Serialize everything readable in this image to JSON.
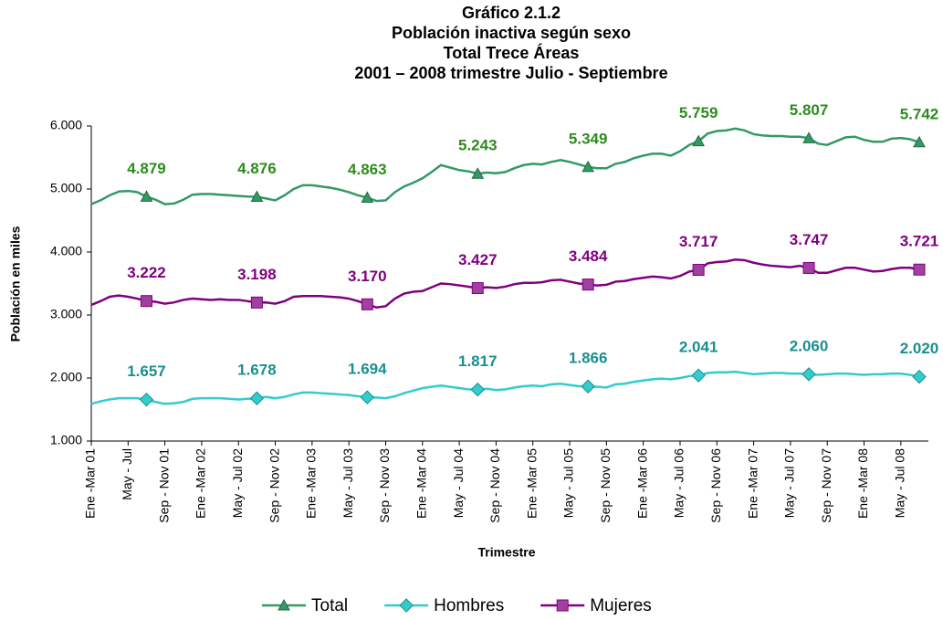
{
  "chart_data": {
    "type": "line",
    "title": [
      "Gráfico 2.1.2",
      "Población inactiva según sexo",
      "Total Trece Áreas",
      "2001 – 2008 trimestre Julio - Septiembre"
    ],
    "x_label": "Trimestre",
    "y_label": "Población en miles",
    "categories": [
      "Ene -Mar 01",
      null,
      null,
      null,
      "May - Jul",
      null,
      null,
      null,
      "Sep - Nov 01",
      null,
      null,
      null,
      "Ene -Mar 02",
      null,
      null,
      null,
      "May - Jul 02",
      null,
      null,
      null,
      "Sep - Nov 02",
      null,
      null,
      null,
      "Ene -Mar 03",
      null,
      null,
      null,
      "May - Jul 03",
      null,
      null,
      null,
      "Sep - Nov 03",
      null,
      null,
      null,
      "Ene -Mar 04",
      null,
      null,
      null,
      "May - Jul 04",
      null,
      null,
      null,
      "Sep - Nov 04",
      null,
      null,
      null,
      "Ene -Mar 05",
      null,
      null,
      null,
      "May - Jul 05",
      null,
      null,
      null,
      "Sep - Nov 05",
      null,
      null,
      null,
      "Ene -Mar 06",
      null,
      null,
      null,
      "May - Jul 06",
      null,
      null,
      null,
      "Sep - Nov 06",
      null,
      null,
      null,
      "Ene -Mar 07",
      null,
      null,
      null,
      "May - Jul 07",
      null,
      null,
      null,
      "Sep - Nov 07",
      null,
      null,
      null,
      "Ene -Mar 08",
      null,
      null,
      null,
      "May - Jul 08",
      null,
      null
    ],
    "ylim": [
      1000,
      6000
    ],
    "yticks": [
      {
        "value": 1000,
        "label": "1.000"
      },
      {
        "value": 2000,
        "label": "2.000"
      },
      {
        "value": 3000,
        "label": "3.000"
      },
      {
        "value": 4000,
        "label": "4.000"
      },
      {
        "value": 5000,
        "label": "5.000"
      },
      {
        "value": 6000,
        "label": "6.000"
      }
    ],
    "legend": "bottom",
    "series": [
      {
        "name": "Total",
        "color": "#339966",
        "label_color": "#2e8b1e",
        "marker": "triangle",
        "values": [
          4760,
          4820,
          4900,
          4960,
          4970,
          4950,
          4879,
          4830,
          4760,
          4770,
          4830,
          4910,
          4920,
          4920,
          4910,
          4900,
          4890,
          4880,
          4876,
          4850,
          4820,
          4900,
          5000,
          5060,
          5060,
          5040,
          5020,
          4990,
          4950,
          4900,
          4863,
          4810,
          4820,
          4950,
          5040,
          5100,
          5170,
          5270,
          5380,
          5340,
          5300,
          5280,
          5243,
          5260,
          5250,
          5270,
          5330,
          5380,
          5400,
          5390,
          5430,
          5460,
          5430,
          5390,
          5349,
          5330,
          5330,
          5400,
          5430,
          5490,
          5530,
          5560,
          5560,
          5530,
          5600,
          5700,
          5759,
          5880,
          5920,
          5930,
          5960,
          5930,
          5870,
          5850,
          5840,
          5840,
          5830,
          5830,
          5807,
          5720,
          5700,
          5760,
          5820,
          5830,
          5780,
          5750,
          5750,
          5800,
          5810,
          5790,
          5742
        ],
        "value_labels": [
          null,
          null,
          null,
          null,
          null,
          null,
          "4.879",
          null,
          null,
          null,
          null,
          null,
          null,
          null,
          null,
          null,
          null,
          null,
          "4.876",
          null,
          null,
          null,
          null,
          null,
          null,
          null,
          null,
          null,
          null,
          null,
          "4.863",
          null,
          null,
          null,
          null,
          null,
          null,
          null,
          null,
          null,
          null,
          null,
          "5.243",
          null,
          null,
          null,
          null,
          null,
          null,
          null,
          null,
          null,
          null,
          null,
          "5.349",
          null,
          null,
          null,
          null,
          null,
          null,
          null,
          null,
          null,
          null,
          null,
          "5.759",
          null,
          null,
          null,
          null,
          null,
          null,
          null,
          null,
          null,
          null,
          null,
          "5.807",
          null,
          null,
          null,
          null,
          null,
          null,
          null,
          null,
          null,
          null,
          null,
          "5.742"
        ]
      },
      {
        "name": "Hombres",
        "color": "#33cccc",
        "label_color": "#1a8f8f",
        "marker": "diamond",
        "values": [
          1590,
          1630,
          1660,
          1680,
          1680,
          1680,
          1657,
          1620,
          1590,
          1600,
          1620,
          1670,
          1680,
          1680,
          1680,
          1670,
          1660,
          1670,
          1678,
          1700,
          1680,
          1700,
          1740,
          1770,
          1770,
          1760,
          1750,
          1740,
          1730,
          1710,
          1694,
          1690,
          1680,
          1710,
          1760,
          1800,
          1840,
          1860,
          1880,
          1860,
          1840,
          1820,
          1817,
          1830,
          1810,
          1820,
          1850,
          1870,
          1880,
          1870,
          1900,
          1910,
          1890,
          1870,
          1866,
          1860,
          1850,
          1900,
          1910,
          1940,
          1960,
          1980,
          1990,
          1980,
          2000,
          2030,
          2041,
          2080,
          2090,
          2090,
          2100,
          2080,
          2060,
          2070,
          2080,
          2080,
          2070,
          2070,
          2060,
          2050,
          2060,
          2070,
          2070,
          2060,
          2050,
          2060,
          2060,
          2070,
          2070,
          2050,
          2020
        ],
        "value_labels": [
          null,
          null,
          null,
          null,
          null,
          null,
          "1.657",
          null,
          null,
          null,
          null,
          null,
          null,
          null,
          null,
          null,
          null,
          null,
          "1.678",
          null,
          null,
          null,
          null,
          null,
          null,
          null,
          null,
          null,
          null,
          null,
          "1.694",
          null,
          null,
          null,
          null,
          null,
          null,
          null,
          null,
          null,
          null,
          null,
          "1.817",
          null,
          null,
          null,
          null,
          null,
          null,
          null,
          null,
          null,
          null,
          null,
          "1.866",
          null,
          null,
          null,
          null,
          null,
          null,
          null,
          null,
          null,
          null,
          null,
          "2.041",
          null,
          null,
          null,
          null,
          null,
          null,
          null,
          null,
          null,
          null,
          null,
          "2.060",
          null,
          null,
          null,
          null,
          null,
          null,
          null,
          null,
          null,
          null,
          null,
          "2.020"
        ]
      },
      {
        "name": "Mujeres",
        "color": "#800080",
        "label_color": "#800080",
        "marker": "square",
        "values": [
          3160,
          3220,
          3290,
          3310,
          3290,
          3260,
          3222,
          3210,
          3180,
          3200,
          3240,
          3260,
          3250,
          3240,
          3250,
          3240,
          3240,
          3220,
          3198,
          3200,
          3180,
          3220,
          3290,
          3300,
          3300,
          3300,
          3290,
          3280,
          3260,
          3220,
          3170,
          3120,
          3140,
          3260,
          3340,
          3370,
          3380,
          3440,
          3500,
          3490,
          3470,
          3450,
          3427,
          3440,
          3430,
          3450,
          3490,
          3510,
          3510,
          3520,
          3550,
          3560,
          3530,
          3500,
          3484,
          3470,
          3480,
          3530,
          3540,
          3570,
          3590,
          3610,
          3600,
          3580,
          3620,
          3690,
          3717,
          3820,
          3840,
          3850,
          3880,
          3870,
          3830,
          3800,
          3780,
          3770,
          3760,
          3780,
          3747,
          3670,
          3670,
          3710,
          3750,
          3750,
          3720,
          3690,
          3700,
          3730,
          3750,
          3750,
          3721
        ],
        "value_labels": [
          null,
          null,
          null,
          null,
          null,
          null,
          "3.222",
          null,
          null,
          null,
          null,
          null,
          null,
          null,
          null,
          null,
          null,
          null,
          "3.198",
          null,
          null,
          null,
          null,
          null,
          null,
          null,
          null,
          null,
          null,
          null,
          "3.170",
          null,
          null,
          null,
          null,
          null,
          null,
          null,
          null,
          null,
          null,
          null,
          "3.427",
          null,
          null,
          null,
          null,
          null,
          null,
          null,
          null,
          null,
          null,
          null,
          "3.484",
          null,
          null,
          null,
          null,
          null,
          null,
          null,
          null,
          null,
          null,
          null,
          "3.717",
          null,
          null,
          null,
          null,
          null,
          null,
          null,
          null,
          null,
          null,
          null,
          "3.747",
          null,
          null,
          null,
          null,
          null,
          null,
          null,
          null,
          null,
          null,
          null,
          "3.721"
        ]
      }
    ]
  }
}
